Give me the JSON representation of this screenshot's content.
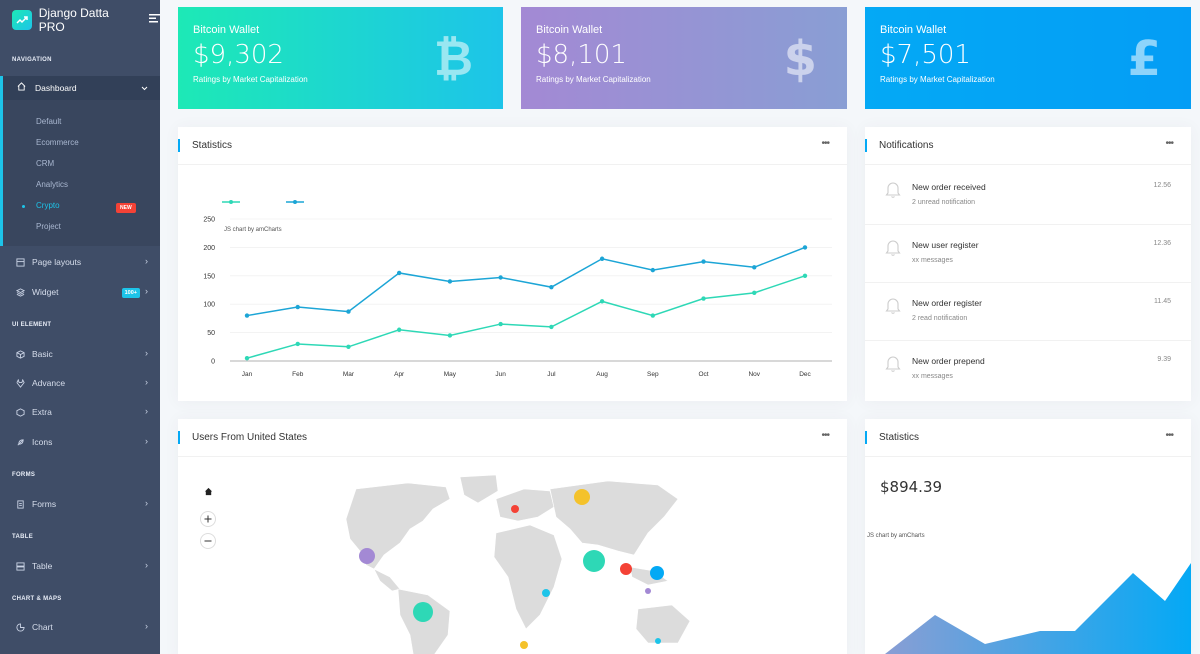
{
  "sidebar": {
    "brand": "Django Datta PRO",
    "captions": {
      "navigation": "NAVIGATION",
      "ui_element": "UI ELEMENT",
      "forms": "FORMS",
      "table": "TABLE",
      "chart_maps": "CHART & MAPS"
    },
    "dashboard": "Dashboard",
    "dashboard_sub": [
      "Default",
      "Ecommerce",
      "CRM",
      "Analytics",
      "Crypto",
      "Project"
    ],
    "badge_new": "NEW",
    "page_layouts": "Page layouts",
    "widget": "Widget",
    "badge_widget": "100+",
    "basic": "Basic",
    "advance": "Advance",
    "extra": "Extra",
    "icons": "Icons",
    "forms": "Forms",
    "table": "Table",
    "chart": "Chart"
  },
  "wallets": [
    {
      "title": "Bitcoin Wallet",
      "amount": "$9,302",
      "sub": "Ratings by Market Capitalization",
      "icon": "₿",
      "color_from": "#1de9b6",
      "color_to": "#1dc4e9"
    },
    {
      "title": "Bitcoin Wallet",
      "amount": "$8,101",
      "sub": "Ratings by Market Capitalization",
      "icon": "$",
      "color_from": "#a389d4",
      "color_to": "#899ed4"
    },
    {
      "title": "Bitcoin Wallet",
      "amount": "$7,501",
      "sub": "Ratings by Market Capitalization",
      "icon": "£",
      "color_from": "#04a9f5",
      "color_to": "#049df5"
    }
  ],
  "statistics_card": {
    "title": "Statistics",
    "credit": "JS chart by amCharts"
  },
  "chart_data": {
    "type": "line",
    "categories": [
      "Jan",
      "Feb",
      "Mar",
      "Apr",
      "May",
      "Jun",
      "Jul",
      "Aug",
      "Sep",
      "Oct",
      "Nov",
      "Dec"
    ],
    "series": [
      {
        "values": [
          80,
          95,
          87,
          155,
          140,
          147,
          130,
          180,
          160,
          175,
          165,
          200
        ],
        "color": "#1ca5d6"
      },
      {
        "values": [
          5,
          30,
          25,
          55,
          45,
          65,
          60,
          105,
          80,
          110,
          120,
          150
        ],
        "color": "#2ed8b6"
      }
    ],
    "yticks": [
      0,
      50,
      100,
      150,
      200,
      250
    ],
    "ylim": [
      0,
      250
    ],
    "grid": true,
    "legend": "top-left"
  },
  "notifications": {
    "title": "Notifications",
    "items": [
      {
        "title": "New order received",
        "sub": "2 unread notification",
        "time": "12.56"
      },
      {
        "title": "New user register",
        "sub": "xx messages",
        "time": "12.36"
      },
      {
        "title": "New order register",
        "sub": "2 read notification",
        "time": "11.45"
      },
      {
        "title": "New order prepend",
        "sub": "xx messages",
        "time": "9.39"
      }
    ]
  },
  "users_map": {
    "title": "Users From United States"
  },
  "statistics2": {
    "title": "Statistics",
    "amount": "$894.39",
    "credit": "JS chart by amCharts"
  }
}
